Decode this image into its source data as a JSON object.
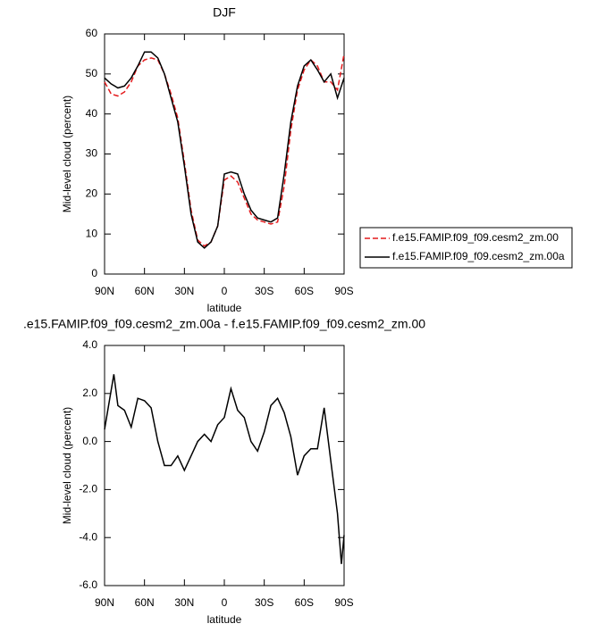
{
  "chart_data": [
    {
      "type": "line",
      "title": "DJF",
      "xlabel": "latitude",
      "ylabel": "Mid-level cloud (percent)",
      "x": [
        90,
        85,
        80,
        75,
        70,
        65,
        60,
        55,
        50,
        45,
        40,
        35,
        30,
        25,
        20,
        15,
        10,
        5,
        0,
        -5,
        -10,
        -15,
        -20,
        -25,
        -30,
        -35,
        -40,
        -45,
        -50,
        -55,
        -60,
        -65,
        -70,
        -75,
        -80,
        -85,
        -90
      ],
      "series": [
        {
          "name": "f.e15.FAMIP.f09_f09.cesm2_zm.00",
          "color": "#e41a1c",
          "dash": true,
          "values": [
            48,
            45,
            44.5,
            45.5,
            48,
            52,
            53.5,
            54,
            53.5,
            50,
            45,
            39,
            28,
            16,
            8.5,
            7,
            8,
            12,
            23.5,
            24.5,
            23,
            19,
            15,
            13.5,
            13,
            12.5,
            13,
            22,
            36,
            46,
            51,
            53.5,
            52,
            48,
            48,
            46,
            55
          ]
        },
        {
          "name": "f.e15.FAMIP.f09_f09.cesm2_zm.00a",
          "color": "#000000",
          "dash": false,
          "values": [
            49,
            47.5,
            46.5,
            47,
            49,
            52,
            55.5,
            55.5,
            54,
            50,
            44,
            38,
            27,
            15,
            8,
            6.5,
            8,
            12,
            25,
            25.5,
            25,
            20,
            16,
            14,
            13.5,
            13,
            14,
            25,
            38,
            47,
            52,
            53.5,
            51,
            48,
            50,
            44,
            49
          ]
        }
      ],
      "xlim": [
        90,
        -90
      ],
      "xticks": [
        {
          "value": 90,
          "label": "90N"
        },
        {
          "value": 60,
          "label": "60N"
        },
        {
          "value": 30,
          "label": "30N"
        },
        0,
        {
          "value": -30,
          "label": "30S"
        },
        {
          "value": -60,
          "label": "60S"
        },
        {
          "value": -90,
          "label": "90S"
        }
      ],
      "ylim": [
        0,
        60
      ],
      "yticks": [
        0,
        10,
        20,
        30,
        40,
        50,
        60
      ],
      "legend": "right"
    },
    {
      "type": "line",
      "title": ".e15.FAMIP.f09_f09.cesm2_zm.00a - f.e15.FAMIP.f09_f09.cesm2_zm.00",
      "xlabel": "latitude",
      "ylabel": "Mid-level cloud (percent)",
      "x": [
        90,
        87,
        83,
        80,
        75,
        70,
        65,
        60,
        55,
        50,
        45,
        40,
        35,
        30,
        25,
        20,
        15,
        10,
        5,
        0,
        -5,
        -10,
        -15,
        -20,
        -25,
        -30,
        -35,
        -40,
        -45,
        -50,
        -55,
        -60,
        -65,
        -70,
        -75,
        -80,
        -85,
        -88,
        -90
      ],
      "series": [
        {
          "color": "#000000",
          "dash": false,
          "values": [
            0.5,
            1.5,
            2.8,
            1.5,
            1.3,
            0.6,
            1.8,
            1.7,
            1.4,
            0.0,
            -1.0,
            -1.0,
            -0.6,
            -1.2,
            -0.6,
            0.0,
            0.3,
            0.0,
            0.7,
            1.0,
            2.2,
            1.3,
            1.0,
            0.0,
            -0.4,
            0.4,
            1.5,
            1.8,
            1.2,
            0.2,
            -1.4,
            -0.6,
            -0.3,
            -0.3,
            1.4,
            -0.8,
            -3.0,
            -5.1,
            -3.9
          ]
        }
      ],
      "xlim": [
        90,
        -90
      ],
      "xticks": [
        {
          "value": 90,
          "label": "90N"
        },
        {
          "value": 60,
          "label": "60N"
        },
        {
          "value": 30,
          "label": "30N"
        },
        0,
        {
          "value": -30,
          "label": "30S"
        },
        {
          "value": -60,
          "label": "60S"
        },
        {
          "value": -90,
          "label": "90S"
        }
      ],
      "ylim": [
        -6,
        4
      ],
      "yticks": [
        {
          "value": -6,
          "label": "-6.0"
        },
        {
          "value": -4,
          "label": "-4.0"
        },
        {
          "value": -2,
          "label": "-2.0"
        },
        {
          "value": 0,
          "label": "0.0"
        },
        {
          "value": 2,
          "label": "2.0"
        },
        {
          "value": 4,
          "label": "4.0"
        }
      ]
    }
  ]
}
